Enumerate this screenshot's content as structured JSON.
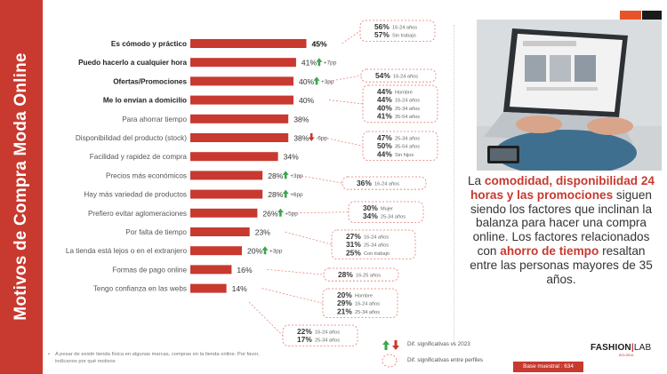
{
  "title": "Motivos de Compra Moda Online",
  "chart_data": {
    "type": "bar",
    "orientation": "horizontal",
    "unit": "%",
    "xlim": [
      0,
      50
    ],
    "bar_color": "#c8392f",
    "categories": [
      "Es cómodo y práctico",
      "Puedo hacerlo a cualquier hora",
      "Ofertas/Promociones",
      "Me lo envían a domicilio",
      "Para ahorrar tiempo",
      "Disponibilidad del producto (stock)",
      "Facilidad y rapidez de compra",
      "Precios más económicos",
      "Hay más variedad de productos",
      "Prefiero evitar aglomeraciones",
      "Por falta de tiempo",
      "La tienda está lejos o en el extranjero",
      "Formas de pago online",
      "Tengo confianza en las webs"
    ],
    "bold_categories": [
      0,
      1,
      2,
      3
    ],
    "values": [
      45,
      41,
      40,
      40,
      38,
      38,
      34,
      28,
      28,
      26,
      23,
      20,
      16,
      14
    ],
    "value_labels": [
      "45%",
      "41%",
      "40%",
      "40%",
      "38%",
      "38%",
      "34%",
      "28%",
      "28%",
      "26%",
      "23%",
      "20%",
      "16%",
      "14%"
    ],
    "changes": [
      {
        "index": 1,
        "direction": "up",
        "label": "+7pp"
      },
      {
        "index": 2,
        "direction": "up",
        "label": "+3pp"
      },
      {
        "index": 5,
        "direction": "down",
        "label": "-6pp"
      },
      {
        "index": 7,
        "direction": "up",
        "label": "+3pp"
      },
      {
        "index": 8,
        "direction": "up",
        "label": "+6pp"
      },
      {
        "index": 9,
        "direction": "up",
        "label": "+5pp"
      },
      {
        "index": 11,
        "direction": "up",
        "label": "+3pp"
      }
    ],
    "callouts": [
      {
        "index": 0,
        "items": [
          {
            "pct": "56%",
            "profile": "16-24 años"
          },
          {
            "pct": "57%",
            "profile": "Sin trabajo"
          }
        ]
      },
      {
        "index": 2,
        "items": [
          {
            "pct": "54%",
            "profile": "16-24 años"
          }
        ]
      },
      {
        "index": 3,
        "items": [
          {
            "pct": "44%",
            "profile": "Hombre"
          },
          {
            "pct": "44%",
            "profile": "16-24 años"
          },
          {
            "pct": "40%",
            "profile": "25-34 años"
          },
          {
            "pct": "41%",
            "profile": "35-54 años"
          }
        ]
      },
      {
        "index": 5,
        "items": [
          {
            "pct": "47%",
            "profile": "25-34 años"
          },
          {
            "pct": "50%",
            "profile": "35-54 años"
          },
          {
            "pct": "44%",
            "profile": "Sin hijos"
          }
        ]
      },
      {
        "index": 7,
        "items": [
          {
            "pct": "36%",
            "profile": "16-24 años"
          }
        ]
      },
      {
        "index": 9,
        "items": [
          {
            "pct": "30%",
            "profile": "Mujer"
          },
          {
            "pct": "34%",
            "profile": "25-34 años"
          }
        ]
      },
      {
        "index": 10,
        "items": [
          {
            "pct": "27%",
            "profile": "16-24 años"
          },
          {
            "pct": "31%",
            "profile": "25-34 años"
          },
          {
            "pct": "25%",
            "profile": "Con trabajo"
          }
        ]
      },
      {
        "index": 12,
        "items": [
          {
            "pct": "28%",
            "profile": "16-25 años"
          }
        ]
      },
      {
        "index": 13,
        "items": [
          {
            "pct": "20%",
            "profile": "Hombre"
          },
          {
            "pct": "29%",
            "profile": "16-24 años"
          },
          {
            "pct": "21%",
            "profile": "25-34 años"
          }
        ]
      },
      {
        "index": 13,
        "items": [
          {
            "pct": "22%",
            "profile": "16-24 años"
          },
          {
            "pct": "17%",
            "profile": "25-34 años"
          }
        ]
      }
    ]
  },
  "summary": {
    "part1": "La ",
    "hl1": "comodidad, disponibilidad 24 horas y las promociones",
    "part2": " siguen siendo los factores que inclinan la balanza para hacer una compra online. Los factores relacionados con ",
    "hl2": "ahorro de tiempo",
    "part3": " resaltan entre las personas mayores de 35 años."
  },
  "footnote": {
    "bullet": "•",
    "text": "A pesar de existir tienda física en algunas marcas, compras en la tienda online. Por favor, indícanos por qué motivos"
  },
  "legend": {
    "arrows_label": "Dif. significativas vs 2023",
    "circle_label": "Dif. significativas entre perfiles"
  },
  "logo": {
    "main": "FASHION",
    "accent": "LAB",
    "sub": "BOLSIDA"
  },
  "base": "Base muestral : 634",
  "colors": {
    "accent": "#c8392f",
    "up": "#3aa64c",
    "down": "#c8392f",
    "orange": "#e8542a",
    "dark": "#1b1b1b"
  }
}
